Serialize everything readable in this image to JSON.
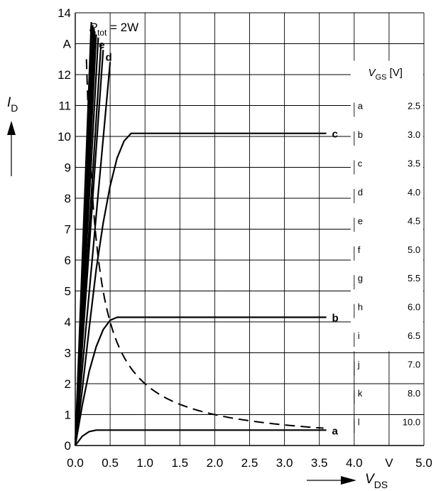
{
  "chart_data": {
    "type": "line",
    "title": "",
    "xlabel": {
      "main": "V",
      "sub": "DS"
    },
    "ylabel": {
      "main": "I",
      "sub": "D"
    },
    "x_ticks": [
      "0.0",
      "0.5",
      "1.0",
      "1.5",
      "2.0",
      "2.5",
      "3.0",
      "3.5",
      "4.0",
      "V",
      "5.0"
    ],
    "y_ticks": [
      "0",
      "1",
      "2",
      "3",
      "4",
      "5",
      "6",
      "7",
      "8",
      "9",
      "10",
      "11",
      "12",
      "A",
      "14"
    ],
    "xlim": [
      0,
      5.0
    ],
    "ylim": [
      0,
      14
    ],
    "grid": true,
    "power_annotation": {
      "prefix": "P",
      "sub": "tot",
      "suffix": " = 2W"
    },
    "power_curve": {
      "type": "hyperbola",
      "P_W": 2,
      "style": "dashed"
    },
    "vgs_table": {
      "header_main": "V",
      "header_sub": "GS",
      "header_unit": " [V]",
      "rows": [
        {
          "label": "a",
          "value": "2.5"
        },
        {
          "label": "b",
          "value": "3.0"
        },
        {
          "label": "c",
          "value": "3.5"
        },
        {
          "label": "d",
          "value": "4.0"
        },
        {
          "label": "e",
          "value": "4.5"
        },
        {
          "label": "f",
          "value": "5.0"
        },
        {
          "label": "g",
          "value": "5.5"
        },
        {
          "label": "h",
          "value": "6.0"
        },
        {
          "label": "i",
          "value": "6.5"
        },
        {
          "label": "j",
          "value": "7.0"
        },
        {
          "label": "k",
          "value": "8.0"
        },
        {
          "label": "l",
          "value": "10.0"
        }
      ]
    },
    "series": [
      {
        "name": "a",
        "vgs": 2.5,
        "x": [
          0,
          0.1,
          0.2,
          0.3,
          0.4,
          3.6
        ],
        "y": [
          0,
          0.3,
          0.45,
          0.5,
          0.5,
          0.5
        ]
      },
      {
        "name": "b",
        "vgs": 3.0,
        "x": [
          0,
          0.1,
          0.2,
          0.3,
          0.4,
          0.5,
          0.6,
          3.6
        ],
        "y": [
          0,
          1.3,
          2.4,
          3.2,
          3.75,
          4.05,
          4.15,
          4.15
        ]
      },
      {
        "name": "c",
        "vgs": 3.5,
        "x": [
          0,
          0.1,
          0.2,
          0.3,
          0.4,
          0.5,
          0.6,
          0.7,
          0.8,
          3.6
        ],
        "y": [
          0,
          1.8,
          3.8,
          5.7,
          7.2,
          8.4,
          9.3,
          9.85,
          10.1,
          10.1
        ]
      },
      {
        "name": "d",
        "vgs": 4.0,
        "x": [
          0,
          0.5
        ],
        "y": [
          0,
          12.4
        ]
      },
      {
        "name": "e",
        "vgs": 4.5,
        "x": [
          0,
          0.4
        ],
        "y": [
          0,
          12.8
        ]
      },
      {
        "name": "f",
        "vgs": 5.0,
        "x": [
          0,
          0.37
        ],
        "y": [
          0,
          13.0
        ]
      },
      {
        "name": "g",
        "vgs": 5.5,
        "x": [
          0,
          0.33
        ],
        "y": [
          0,
          13.2
        ]
      },
      {
        "name": "h",
        "vgs": 6.0,
        "x": [
          0,
          0.3
        ],
        "y": [
          0,
          13.3
        ]
      },
      {
        "name": "i",
        "vgs": 6.5,
        "x": [
          0,
          0.28
        ],
        "y": [
          0,
          13.4
        ]
      },
      {
        "name": "j",
        "vgs": 7.0,
        "x": [
          0,
          0.27
        ],
        "y": [
          0,
          13.5
        ]
      },
      {
        "name": "k",
        "vgs": 8.0,
        "x": [
          0,
          0.25
        ],
        "y": [
          0,
          13.6
        ]
      },
      {
        "name": "l",
        "vgs": 10.0,
        "x": [
          0,
          0.23
        ],
        "y": [
          0,
          13.7
        ]
      }
    ],
    "curve_labels": [
      {
        "text": "a",
        "series": "a",
        "position": "right-end"
      },
      {
        "text": "b",
        "series": "b",
        "position": "right-end"
      },
      {
        "text": "c",
        "series": "c",
        "position": "right-end"
      },
      {
        "text": "d",
        "series": "d",
        "position": "top"
      },
      {
        "text": "e",
        "series": "e",
        "position": "top"
      }
    ]
  }
}
